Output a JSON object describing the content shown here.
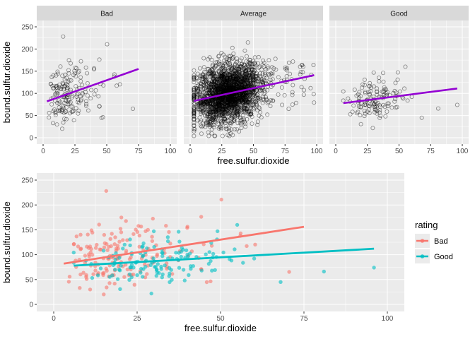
{
  "chart_data": [
    {
      "type": "scatter",
      "facets": [
        "Bad",
        "Average",
        "Good"
      ],
      "xlabel": "free.sulfur.dioxide",
      "ylabel": "bound.sulfur.dioxide",
      "xlim": [
        0,
        100
      ],
      "ylim": [
        0,
        250
      ],
      "xticks": [
        0,
        25,
        50,
        75,
        100
      ],
      "yticks": [
        0,
        50,
        100,
        150,
        200,
        250
      ],
      "point_style": "open circle",
      "trend_color": "#9400d3",
      "grid": true,
      "trend_lines": [
        {
          "facet": "Bad",
          "x": [
            3,
            75
          ],
          "y": [
            82,
            155
          ]
        },
        {
          "facet": "Average",
          "x": [
            3,
            98
          ],
          "y": [
            83,
            141
          ]
        },
        {
          "facet": "Good",
          "x": [
            6,
            96
          ],
          "y": [
            78,
            111
          ]
        }
      ]
    },
    {
      "type": "scatter",
      "xlabel": "free.sulfur.dioxide",
      "ylabel": "bound.sulfur.dioxide",
      "xlim": [
        0,
        100
      ],
      "ylim": [
        0,
        250
      ],
      "xticks": [
        0,
        25,
        50,
        75,
        100
      ],
      "yticks": [
        0,
        50,
        100,
        150,
        200,
        250
      ],
      "grid": true,
      "legend": {
        "title": "rating",
        "position": "right"
      },
      "series": [
        {
          "name": "Bad",
          "color": "#f8766d",
          "trend": {
            "x": [
              3,
              75
            ],
            "y": [
              82,
              156
            ]
          }
        },
        {
          "name": "Good",
          "color": "#00bfc4",
          "trend": {
            "x": [
              6,
              96
            ],
            "y": [
              78,
              112
            ]
          }
        }
      ]
    }
  ]
}
